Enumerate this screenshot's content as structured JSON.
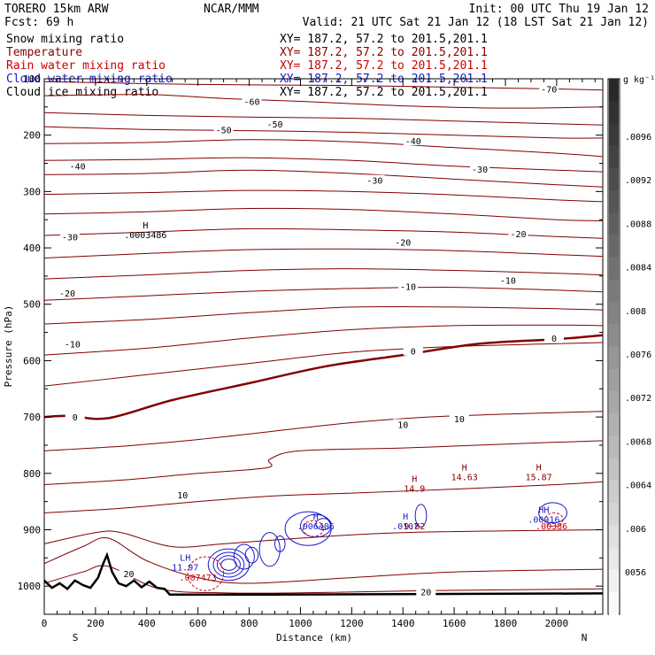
{
  "header": {
    "model": "TORERO  15km ARW",
    "center": "NCAR/MMM",
    "init": "Init: 00 UTC Thu 19 Jan 12",
    "fcst": "Fcst:   69 h",
    "valid": "Valid: 21 UTC Sat 21 Jan 12 (18 LST Sat 21 Jan 12)"
  },
  "fields": [
    {
      "label": "Snow mixing ratio",
      "xy": "XY= 187.2, 57.2 to 201.5,201.1",
      "color": "#000000"
    },
    {
      "label": "Temperature",
      "xy": "XY= 187.2, 57.2 to 201.5,201.1",
      "color": "#8b0000"
    },
    {
      "label": "Rain water mixing ratio",
      "xy": "XY= 187.2, 57.2 to 201.5,201.1",
      "color": "#cc0000"
    },
    {
      "label": "Cloud water mixing ratio",
      "xy": "XY= 187.2, 57.2 to 201.5,201.1",
      "color": "#1a1acc"
    },
    {
      "label": "Cloud ice mixing ratio",
      "xy": "XY= 187.2, 57.2 to 201.5,201.1",
      "color": "#000000"
    }
  ],
  "colorbar": {
    "unit": "g kg⁻¹",
    "labels": [
      "0056",
      ".006",
      ".0064",
      ".0068",
      ".0072",
      ".0076",
      ".008",
      ".0084",
      ".0088",
      ".0092",
      ".0096"
    ]
  },
  "chart_data": {
    "type": "contour",
    "xlabel": "Distance (km)",
    "ylabel": "Pressure (hPa)",
    "xlim": [
      0,
      2180
    ],
    "ylim": [
      1050,
      100
    ],
    "xticks": [
      0,
      200,
      400,
      600,
      800,
      1000,
      1200,
      1400,
      1600,
      1800,
      2000
    ],
    "yticks": [
      100,
      200,
      300,
      400,
      500,
      600,
      700,
      800,
      900,
      1000
    ],
    "dir_left": "S",
    "dir_right": "N",
    "isotherms": [
      {
        "t": -70,
        "pts": [
          [
            0,
            105
          ],
          [
            600,
            110
          ],
          [
            1200,
            112
          ],
          [
            1600,
            115
          ],
          [
            2000,
            118
          ],
          [
            2180,
            120
          ]
        ]
      },
      {
        "t": -60,
        "pts": [
          [
            0,
            130
          ],
          [
            400,
            128
          ],
          [
            700,
            135
          ],
          [
            1000,
            140
          ],
          [
            1400,
            148
          ],
          [
            1800,
            152
          ],
          [
            2180,
            150
          ]
        ]
      },
      {
        "t": -60,
        "pts": [
          [
            0,
            160
          ],
          [
            400,
            165
          ],
          [
            800,
            168
          ],
          [
            1200,
            170
          ],
          [
            1600,
            175
          ],
          [
            2000,
            180
          ],
          [
            2180,
            182
          ]
        ]
      },
      {
        "t": -50,
        "pts": [
          [
            0,
            185
          ],
          [
            400,
            190
          ],
          [
            800,
            192
          ],
          [
            1200,
            195
          ],
          [
            1600,
            200
          ],
          [
            2000,
            205
          ],
          [
            2180,
            205
          ]
        ]
      },
      {
        "t": -50,
        "pts": [
          [
            0,
            215
          ],
          [
            400,
            213
          ],
          [
            800,
            208
          ],
          [
            1200,
            212
          ],
          [
            1600,
            222
          ],
          [
            2000,
            232
          ],
          [
            2180,
            238
          ]
        ]
      },
      {
        "t": -40,
        "pts": [
          [
            0,
            245
          ],
          [
            400,
            243
          ],
          [
            800,
            240
          ],
          [
            1200,
            245
          ],
          [
            1600,
            255
          ],
          [
            2000,
            262
          ],
          [
            2180,
            265
          ]
        ]
      },
      {
        "t": -40,
        "pts": [
          [
            0,
            270
          ],
          [
            400,
            268
          ],
          [
            800,
            262
          ],
          [
            1200,
            268
          ],
          [
            1600,
            278
          ],
          [
            2000,
            288
          ],
          [
            2180,
            292
          ]
        ]
      },
      {
        "t": -30,
        "pts": [
          [
            0,
            305
          ],
          [
            400,
            302
          ],
          [
            800,
            298
          ],
          [
            1200,
            300
          ],
          [
            1600,
            306
          ],
          [
            2000,
            315
          ],
          [
            2180,
            318
          ]
        ]
      },
      {
        "t": -30,
        "pts": [
          [
            0,
            340
          ],
          [
            400,
            336
          ],
          [
            800,
            330
          ],
          [
            1200,
            332
          ],
          [
            1600,
            340
          ],
          [
            2000,
            350
          ],
          [
            2180,
            352
          ]
        ]
      },
      {
        "t": -20,
        "pts": [
          [
            0,
            378
          ],
          [
            400,
            372
          ],
          [
            800,
            366
          ],
          [
            1200,
            368
          ],
          [
            1600,
            372
          ],
          [
            2000,
            380
          ],
          [
            2180,
            383
          ]
        ]
      },
      {
        "t": -20,
        "pts": [
          [
            0,
            418
          ],
          [
            400,
            410
          ],
          [
            800,
            403
          ],
          [
            1200,
            402
          ],
          [
            1600,
            405
          ],
          [
            2000,
            412
          ],
          [
            2180,
            415
          ]
        ]
      },
      {
        "t": -10,
        "pts": [
          [
            0,
            455
          ],
          [
            400,
            448
          ],
          [
            800,
            440
          ],
          [
            1200,
            437
          ],
          [
            1600,
            440
          ],
          [
            2000,
            445
          ],
          [
            2180,
            448
          ]
        ]
      },
      {
        "t": -10,
        "pts": [
          [
            0,
            493
          ],
          [
            400,
            485
          ],
          [
            800,
            477
          ],
          [
            1200,
            472
          ],
          [
            1600,
            470
          ],
          [
            2000,
            475
          ],
          [
            2180,
            478
          ]
        ]
      },
      {
        "t": -10,
        "pts": [
          [
            0,
            535
          ],
          [
            400,
            527
          ],
          [
            800,
            515
          ],
          [
            1200,
            505
          ],
          [
            1600,
            505
          ],
          [
            2000,
            508
          ],
          [
            2180,
            510
          ]
        ]
      },
      {
        "t": -10,
        "pts": [
          [
            0,
            590
          ],
          [
            400,
            578
          ],
          [
            800,
            560
          ],
          [
            1200,
            545
          ],
          [
            1600,
            538
          ],
          [
            2000,
            537
          ],
          [
            2180,
            538
          ]
        ]
      },
      {
        "t": -10,
        "pts": [
          [
            0,
            645
          ],
          [
            400,
            625
          ],
          [
            800,
            605
          ],
          [
            1200,
            585
          ],
          [
            1600,
            575
          ],
          [
            2000,
            570
          ],
          [
            2180,
            568
          ]
        ]
      },
      {
        "t": 0,
        "bold": true,
        "pts": [
          [
            0,
            700
          ],
          [
            100,
            698
          ],
          [
            250,
            702
          ],
          [
            500,
            670
          ],
          [
            800,
            640
          ],
          [
            1100,
            610
          ],
          [
            1400,
            590
          ],
          [
            1700,
            570
          ],
          [
            2000,
            562
          ],
          [
            2180,
            555
          ]
        ]
      },
      {
        "t": 10,
        "pts": [
          [
            0,
            760
          ],
          [
            300,
            752
          ],
          [
            600,
            740
          ],
          [
            900,
            725
          ],
          [
            1200,
            710
          ],
          [
            1500,
            700
          ],
          [
            1800,
            695
          ],
          [
            2180,
            690
          ]
        ]
      },
      {
        "t": 10,
        "pts": [
          [
            0,
            820
          ],
          [
            300,
            812
          ],
          [
            600,
            800
          ],
          [
            870,
            790
          ],
          [
            880,
            775
          ],
          [
            1000,
            760
          ],
          [
            1400,
            755
          ],
          [
            1800,
            748
          ],
          [
            2180,
            742
          ]
        ]
      },
      {
        "t": 10,
        "pts": [
          [
            0,
            870
          ],
          [
            300,
            862
          ],
          [
            600,
            850
          ],
          [
            900,
            840
          ],
          [
            1200,
            835
          ],
          [
            1600,
            828
          ],
          [
            2000,
            820
          ],
          [
            2180,
            815
          ]
        ]
      },
      {
        "t": 20,
        "pts": [
          [
            0,
            925
          ],
          [
            200,
            905
          ],
          [
            300,
            905
          ],
          [
            500,
            930
          ],
          [
            700,
            925
          ],
          [
            1000,
            915
          ],
          [
            1400,
            905
          ],
          [
            2180,
            900
          ]
        ]
      },
      {
        "t": 20,
        "pts": [
          [
            0,
            960
          ],
          [
            150,
            930
          ],
          [
            250,
            915
          ],
          [
            400,
            955
          ],
          [
            600,
            985
          ],
          [
            800,
            995
          ],
          [
            1200,
            985
          ],
          [
            1600,
            975
          ],
          [
            2180,
            970
          ]
        ]
      },
      {
        "t": 20,
        "pts": [
          [
            0,
            995
          ],
          [
            150,
            975
          ],
          [
            250,
            965
          ],
          [
            450,
            1005
          ],
          [
            700,
            1012
          ],
          [
            1000,
            1012
          ],
          [
            1500,
            1008
          ],
          [
            2180,
            1005
          ]
        ]
      }
    ],
    "temp_labels": [
      {
        "x": 1970,
        "p": 118,
        "t": "-70"
      },
      {
        "x": 810,
        "p": 140,
        "t": "-60"
      },
      {
        "x": 700,
        "p": 190,
        "t": "-50"
      },
      {
        "x": 900,
        "p": 180,
        "t": "-50"
      },
      {
        "x": 1440,
        "p": 210,
        "t": "-40"
      },
      {
        "x": 130,
        "p": 255,
        "t": "-40"
      },
      {
        "x": 1290,
        "p": 280,
        "t": "-30"
      },
      {
        "x": 1700,
        "p": 260,
        "t": "-30"
      },
      {
        "x": 100,
        "p": 380,
        "t": "-30"
      },
      {
        "x": 1400,
        "p": 390,
        "t": "-20"
      },
      {
        "x": 1850,
        "p": 375,
        "t": "-20"
      },
      {
        "x": 90,
        "p": 480,
        "t": "-20"
      },
      {
        "x": 1420,
        "p": 468,
        "t": "-10"
      },
      {
        "x": 1810,
        "p": 457,
        "t": "-10"
      },
      {
        "x": 110,
        "p": 570,
        "t": "-10"
      },
      {
        "x": 1440,
        "p": 583,
        "t": "0"
      },
      {
        "x": 1990,
        "p": 560,
        "t": "0"
      },
      {
        "x": 120,
        "p": 700,
        "t": "0"
      },
      {
        "x": 1400,
        "p": 713,
        "t": "10"
      },
      {
        "x": 1620,
        "p": 703,
        "t": "10"
      },
      {
        "x": 540,
        "p": 838,
        "t": "10"
      },
      {
        "x": 330,
        "p": 978,
        "t": "20"
      },
      {
        "x": 1490,
        "p": 1010,
        "t": "20"
      }
    ],
    "terrain": [
      [
        0,
        990
      ],
      [
        30,
        1003
      ],
      [
        60,
        995
      ],
      [
        90,
        1005
      ],
      [
        120,
        990
      ],
      [
        150,
        998
      ],
      [
        180,
        1003
      ],
      [
        210,
        985
      ],
      [
        230,
        960
      ],
      [
        245,
        945
      ],
      [
        265,
        975
      ],
      [
        290,
        995
      ],
      [
        320,
        1000
      ],
      [
        350,
        990
      ],
      [
        380,
        1002
      ],
      [
        410,
        992
      ],
      [
        440,
        1003
      ],
      [
        470,
        1005
      ],
      [
        490,
        1015
      ],
      [
        600,
        1015
      ],
      [
        900,
        1015
      ],
      [
        1500,
        1014
      ],
      [
        2180,
        1013
      ]
    ],
    "h_markers": [
      {
        "x": 395,
        "p": 365,
        "label": "H",
        "value": ".0003486",
        "color": "#000000"
      },
      {
        "x": 1445,
        "p": 815,
        "label": "H",
        "value": "14.9",
        "color": "#8b0000"
      },
      {
        "x": 1640,
        "p": 795,
        "label": "H",
        "value": "14.63",
        "color": "#8b0000"
      },
      {
        "x": 1930,
        "p": 795,
        "label": "H",
        "value": "15.87",
        "color": "#8b0000"
      },
      {
        "x": 1060,
        "p": 882,
        "label": "H",
        "value": ".006406",
        "color": "#1a1acc"
      },
      {
        "x": 1410,
        "p": 882,
        "label": "H",
        "value": ".0107",
        "color": "#1a1acc"
      },
      {
        "x": 1445,
        "p": 882,
        "label": "",
        "value": "9.82",
        "color": "#8b0000"
      },
      {
        "x": 1950,
        "p": 870,
        "label": "HH",
        "value": ".00916",
        "color": "#1a1acc"
      },
      {
        "x": 1980,
        "p": 882,
        "label": "",
        "value": ".00386",
        "color": "#cc0000"
      },
      {
        "x": 550,
        "p": 955,
        "label": "LH",
        "value": "11.97",
        "color": "#1a1acc"
      },
      {
        "x": 600,
        "p": 973,
        "label": "",
        "value": ".007473",
        "color": "#cc0000"
      }
    ],
    "cloud_water": [
      {
        "cx": 720,
        "p": 962,
        "rx": 80,
        "rp": 28
      },
      {
        "cx": 720,
        "p": 962,
        "rx": 60,
        "rp": 22
      },
      {
        "cx": 720,
        "p": 962,
        "rx": 45,
        "rp": 16
      },
      {
        "cx": 720,
        "p": 962,
        "rx": 30,
        "rp": 10
      },
      {
        "cx": 780,
        "p": 948,
        "rx": 40,
        "rp": 22
      },
      {
        "cx": 810,
        "p": 945,
        "rx": 25,
        "rp": 14
      },
      {
        "cx": 880,
        "p": 935,
        "rx": 40,
        "rp": 30
      },
      {
        "cx": 920,
        "p": 925,
        "rx": 20,
        "rp": 14
      },
      {
        "cx": 1030,
        "p": 898,
        "rx": 90,
        "rp": 30
      },
      {
        "cx": 1060,
        "p": 893,
        "rx": 60,
        "rp": 20
      },
      {
        "cx": 1090,
        "p": 890,
        "rx": 30,
        "rp": 10
      },
      {
        "cx": 1470,
        "p": 875,
        "rx": 22,
        "rp": 20
      },
      {
        "cx": 1985,
        "p": 870,
        "rx": 55,
        "rp": 18
      }
    ],
    "rain_water": [
      {
        "cx": 630,
        "p": 978,
        "rx": 70,
        "rp": 30
      },
      {
        "cx": 1050,
        "p": 898,
        "rx": 40,
        "rp": 14
      },
      {
        "cx": 1990,
        "p": 882,
        "rx": 35,
        "rp": 12
      }
    ]
  }
}
